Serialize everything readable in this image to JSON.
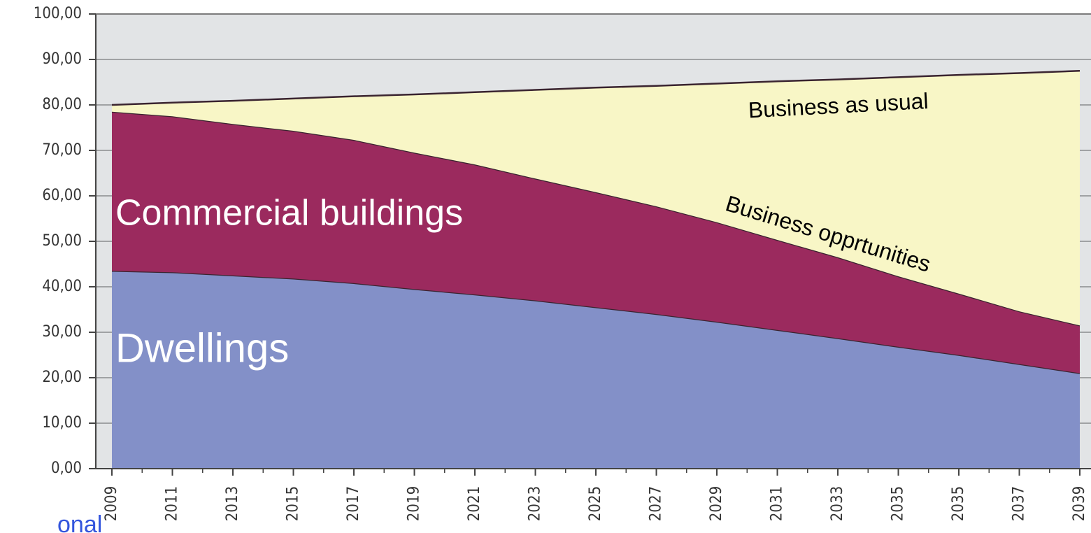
{
  "chart_data": {
    "type": "stacked_area",
    "categories": [
      "2009",
      "2011",
      "2013",
      "2015",
      "2017",
      "2019",
      "2021",
      "2023",
      "2025",
      "2027",
      "2029",
      "2031",
      "2033",
      "2035",
      "2035",
      "2037",
      "2039"
    ],
    "series": [
      {
        "name": "Dwellings",
        "color": "#8390c8",
        "values": [
          43.5,
          43.2,
          42.5,
          41.8,
          40.8,
          39.5,
          38.3,
          37,
          35.5,
          34,
          32.3,
          30.5,
          28.7,
          26.8,
          25,
          23,
          21
        ]
      },
      {
        "name": "Commercial buildings",
        "color": "#9b2a5e",
        "values": [
          35,
          34.3,
          33.3,
          32.5,
          31.5,
          30,
          28.6,
          26.8,
          25.3,
          23.7,
          21.9,
          19.8,
          17.8,
          15.5,
          13.5,
          11.6,
          10.5
        ]
      },
      {
        "name": "Business opprtunities",
        "color": "#f8f6c6",
        "values": [
          1.5,
          3,
          5.1,
          7.1,
          9.6,
          12.8,
          15.9,
          19.5,
          23,
          26.5,
          30.5,
          34.9,
          39.1,
          43.8,
          48.1,
          52.4,
          56
        ]
      }
    ],
    "annotations": [
      "Business as usual"
    ],
    "footer_fragment": "onal",
    "ylim": [
      0,
      100
    ],
    "yticks": [
      {
        "value": 0,
        "label": "0,00"
      },
      {
        "value": 10,
        "label": "10,00"
      },
      {
        "value": 20,
        "label": "20,00"
      },
      {
        "value": 30,
        "label": "30,00"
      },
      {
        "value": 40,
        "label": "40,00"
      },
      {
        "value": 50,
        "label": "50,00"
      },
      {
        "value": 60,
        "label": "60,00"
      },
      {
        "value": 70,
        "label": "70,00"
      },
      {
        "value": 80,
        "label": "80,00"
      },
      {
        "value": 90,
        "label": "90,00"
      },
      {
        "value": 100,
        "label": "100,00"
      }
    ],
    "grid": true,
    "background": "#e2e4e6"
  }
}
